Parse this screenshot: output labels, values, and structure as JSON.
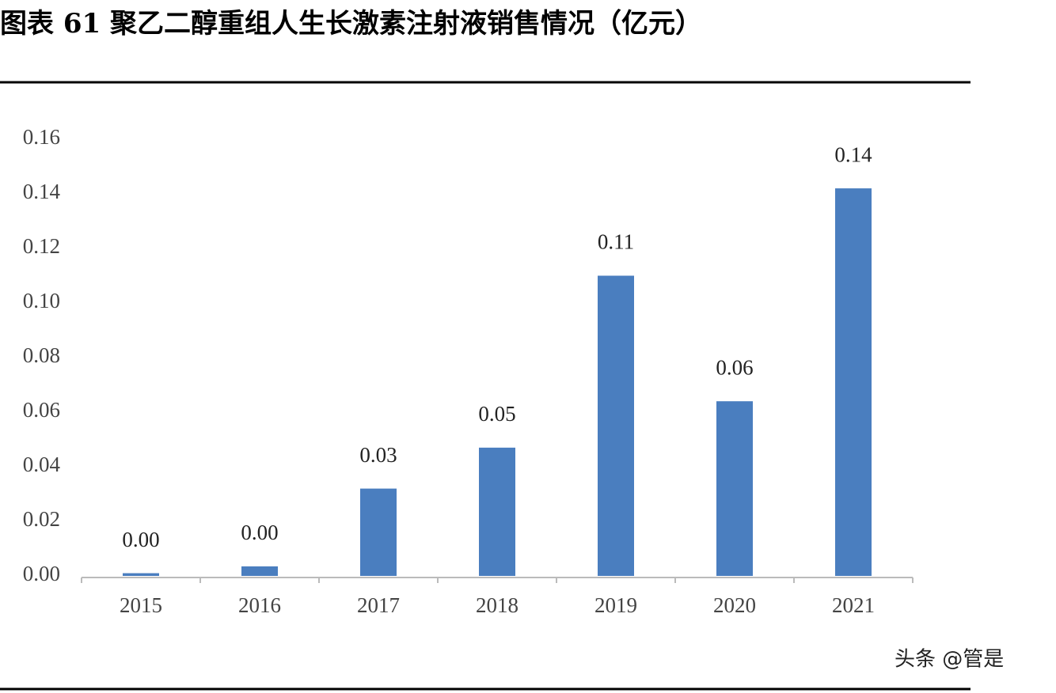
{
  "chart_data": {
    "type": "bar",
    "title": "图表 61 聚乙二醇重组人生长激素注射液销售情况（亿元）",
    "categories": [
      "2015",
      "2016",
      "2017",
      "2018",
      "2019",
      "2020",
      "2021"
    ],
    "values": [
      0.001,
      0.0035,
      0.032,
      0.047,
      0.11,
      0.064,
      0.142
    ],
    "value_labels": [
      "0.00",
      "0.00",
      "0.03",
      "0.05",
      "0.11",
      "0.06",
      "0.14"
    ],
    "color": "#4a7ebf",
    "ylim": [
      0,
      0.16
    ],
    "yticks": [
      {
        "value": 0,
        "label": "0.00"
      },
      {
        "value": 0.02,
        "label": "0.02"
      },
      {
        "value": 0.04,
        "label": "0.04"
      },
      {
        "value": 0.06,
        "label": "0.06"
      },
      {
        "value": 0.08,
        "label": "0.08"
      },
      {
        "value": 0.1,
        "label": "0.10"
      },
      {
        "value": 0.12,
        "label": "0.12"
      },
      {
        "value": 0.14,
        "label": "0.14"
      },
      {
        "value": 0.16,
        "label": "0.16"
      }
    ],
    "grid": false,
    "watermark": "头条 @管是"
  }
}
